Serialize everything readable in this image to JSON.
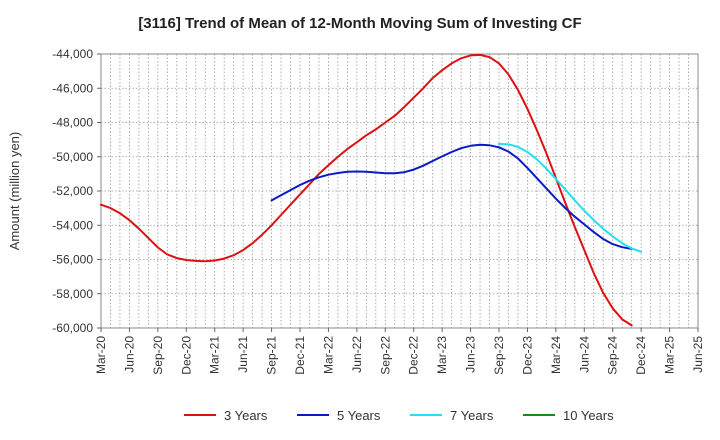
{
  "chart_data": {
    "type": "line",
    "title": "[3116]  Trend of Mean of 12-Month Moving Sum of Investing CF",
    "xlabel": "",
    "ylabel": "Amount (million yen)",
    "ylim": [
      -60000,
      -44000
    ],
    "yticks": [
      -44000,
      -46000,
      -48000,
      -50000,
      -52000,
      -54000,
      -56000,
      -58000,
      -60000
    ],
    "ytick_labels": [
      "-44,000",
      "-46,000",
      "-48,000",
      "-50,000",
      "-52,000",
      "-54,000",
      "-56,000",
      "-58,000",
      "-60,000"
    ],
    "x_tick_labels": [
      "Mar-20",
      "Jun-20",
      "Sep-20",
      "Dec-20",
      "Mar-21",
      "Jun-21",
      "Sep-21",
      "Dec-21",
      "Mar-22",
      "Jun-22",
      "Sep-22",
      "Dec-22",
      "Mar-23",
      "Jun-23",
      "Sep-23",
      "Dec-23",
      "Mar-24",
      "Jun-24",
      "Sep-24",
      "Dec-24",
      "Mar-25",
      "Jun-25"
    ],
    "x_count": 64,
    "grid": true,
    "legend_position": "bottom",
    "series": [
      {
        "name": "3 Years",
        "color": "#dd1111",
        "start_index": 0,
        "values": [
          -52800,
          -53000,
          -53300,
          -53700,
          -54200,
          -54750,
          -55300,
          -55700,
          -55920,
          -56030,
          -56080,
          -56100,
          -56060,
          -55950,
          -55750,
          -55450,
          -55050,
          -54550,
          -54000,
          -53400,
          -52800,
          -52200,
          -51600,
          -51000,
          -50500,
          -50000,
          -49550,
          -49150,
          -48750,
          -48400,
          -48000,
          -47600,
          -47100,
          -46550,
          -46000,
          -45400,
          -44950,
          -44550,
          -44250,
          -44080,
          -44050,
          -44180,
          -44550,
          -45200,
          -46100,
          -47200,
          -48450,
          -49800,
          -51250,
          -52700,
          -54100,
          -55450,
          -56800,
          -57950,
          -58850,
          -59500,
          -59850
        ]
      },
      {
        "name": "5 Years",
        "color": "#0a1ac8",
        "start_index": 18,
        "values": [
          -52550,
          -52250,
          -51950,
          -51650,
          -51400,
          -51200,
          -51050,
          -50950,
          -50880,
          -50860,
          -50880,
          -50920,
          -50960,
          -50960,
          -50900,
          -50750,
          -50520,
          -50250,
          -49980,
          -49720,
          -49500,
          -49360,
          -49300,
          -49330,
          -49450,
          -49700,
          -50100,
          -50650,
          -51250,
          -51850,
          -52450,
          -53000,
          -53500,
          -53950,
          -54400,
          -54800,
          -55100,
          -55280,
          -55380
        ]
      },
      {
        "name": "7 Years",
        "color": "#22e0f0",
        "start_index": 42,
        "values": [
          -49250,
          -49280,
          -49420,
          -49720,
          -50150,
          -50700,
          -51300,
          -51920,
          -52550,
          -53150,
          -53700,
          -54200,
          -54650,
          -55050,
          -55350,
          -55550
        ]
      },
      {
        "name": "10 Years",
        "color": "#1a8a1a",
        "start_index": 0,
        "values": []
      }
    ]
  }
}
